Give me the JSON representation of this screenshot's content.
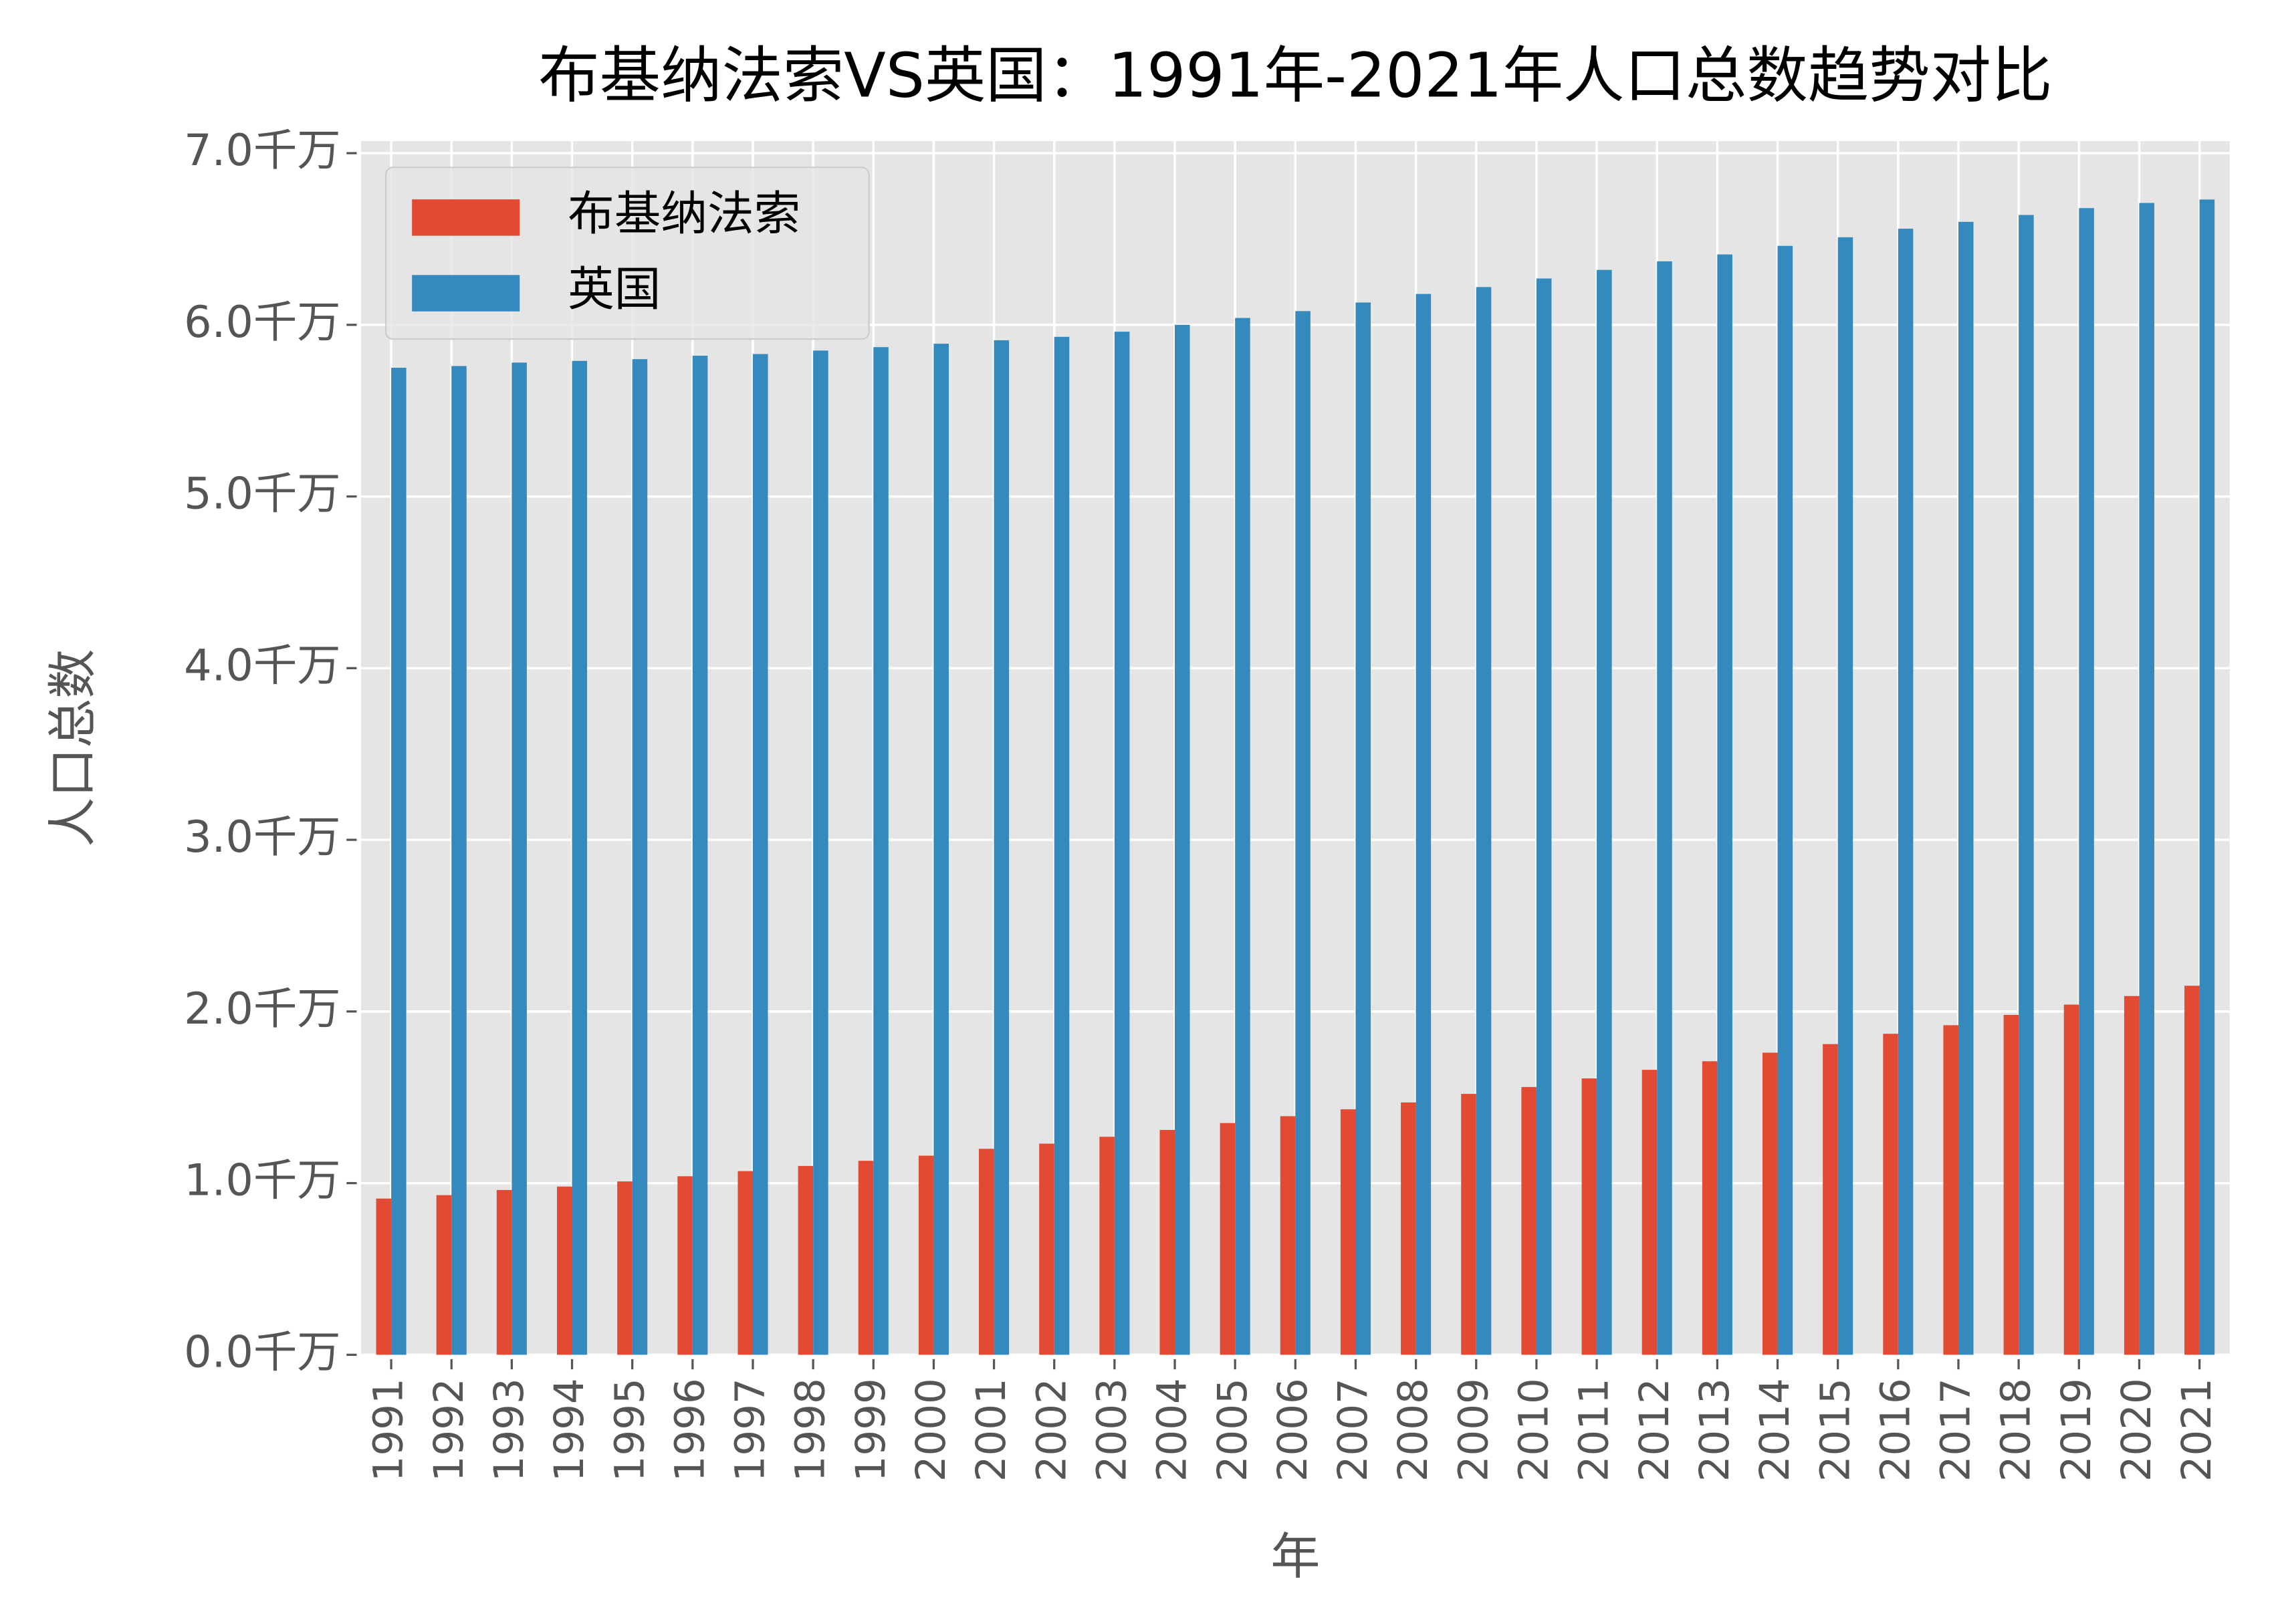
{
  "chart_data": {
    "type": "bar",
    "title": "布基纳法索VS英国：1991年-2021年人口总数趋势对比",
    "x_label": "年",
    "y_label": "人口总数",
    "categories": [
      "1991",
      "1992",
      "1993",
      "1994",
      "1995",
      "1996",
      "1997",
      "1998",
      "1999",
      "2000",
      "2001",
      "2002",
      "2003",
      "2004",
      "2005",
      "2006",
      "2007",
      "2008",
      "2009",
      "2010",
      "2011",
      "2012",
      "2013",
      "2014",
      "2015",
      "2016",
      "2017",
      "2018",
      "2019",
      "2020",
      "2021"
    ],
    "series": [
      {
        "name": "布基纳法索",
        "color": "#E24A33",
        "values": [
          0.91,
          0.93,
          0.96,
          0.98,
          1.01,
          1.04,
          1.07,
          1.1,
          1.13,
          1.16,
          1.2,
          1.23,
          1.27,
          1.31,
          1.35,
          1.39,
          1.43,
          1.47,
          1.52,
          1.56,
          1.61,
          1.66,
          1.71,
          1.76,
          1.81,
          1.87,
          1.92,
          1.98,
          2.04,
          2.09,
          2.15
        ]
      },
      {
        "name": "英国",
        "color": "#348ABD",
        "values": [
          5.75,
          5.76,
          5.78,
          5.79,
          5.8,
          5.82,
          5.83,
          5.85,
          5.87,
          5.89,
          5.91,
          5.93,
          5.96,
          6.0,
          6.04,
          6.08,
          6.13,
          6.18,
          6.22,
          6.27,
          6.32,
          6.37,
          6.41,
          6.46,
          6.51,
          6.56,
          6.6,
          6.64,
          6.68,
          6.71,
          6.73
        ]
      }
    ],
    "ylim": [
      0,
      7.07
    ],
    "yticks": [
      {
        "value": 0,
        "label": "0.0千万"
      },
      {
        "value": 1,
        "label": "1.0千万"
      },
      {
        "value": 2,
        "label": "2.0千万"
      },
      {
        "value": 3,
        "label": "3.0千万"
      },
      {
        "value": 4,
        "label": "4.0千万"
      },
      {
        "value": 5,
        "label": "5.0千万"
      },
      {
        "value": 6,
        "label": "6.0千万"
      },
      {
        "value": 7,
        "label": "7.0千万"
      }
    ],
    "grid": true,
    "legend": "upper left"
  }
}
